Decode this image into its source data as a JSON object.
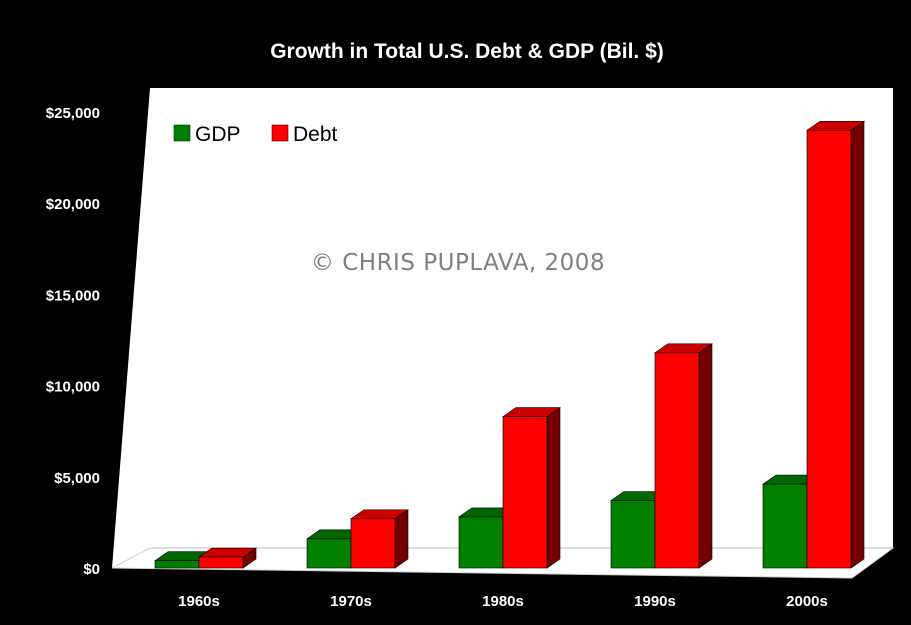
{
  "chart_data": {
    "type": "bar",
    "title": "Growth in Total U.S. Debt & GDP (Bil. $)",
    "xlabel": "",
    "ylabel": "",
    "categories": [
      "1960s",
      "1970s",
      "1980s",
      "1990s",
      "2000s"
    ],
    "series": [
      {
        "name": "GDP",
        "color": "#008000",
        "values": [
          400,
          1600,
          2800,
          3700,
          4600
        ]
      },
      {
        "name": "Debt",
        "color": "#ff0000",
        "values": [
          600,
          2700,
          8300,
          11800,
          24000
        ]
      }
    ],
    "ylim": [
      0,
      25000
    ],
    "y_ticks": [
      "$0",
      "$5,000",
      "$10,000",
      "$15,000",
      "$20,000",
      "$25,000"
    ],
    "y_tick_values": [
      0,
      5000,
      10000,
      15000,
      20000,
      25000
    ],
    "legend_placement": "top-left",
    "grid": false,
    "annotation": "© CHRIS PUPLAVA, 2008",
    "background": "#000000",
    "plot_background": "#ffffff"
  }
}
